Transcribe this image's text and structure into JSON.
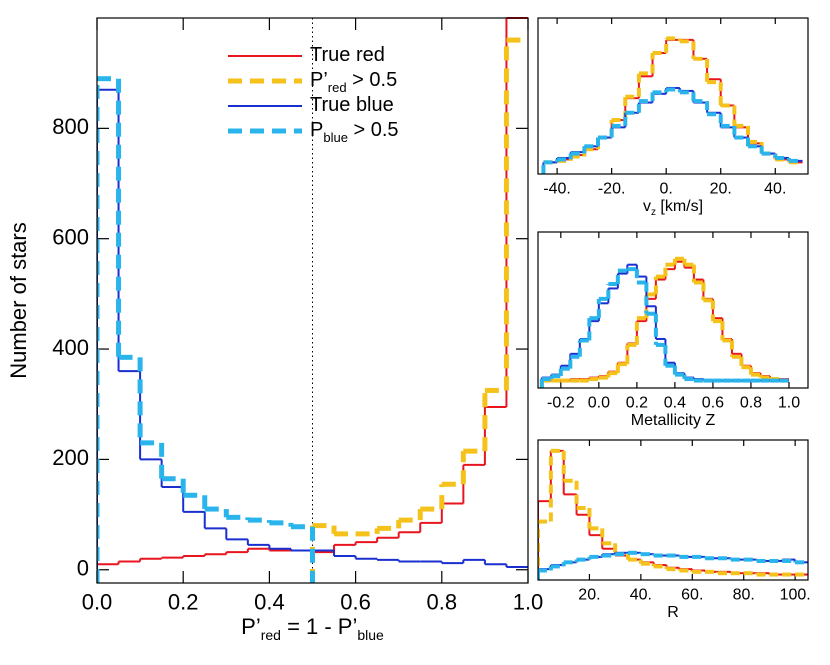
{
  "chart_data": [
    {
      "type": "histogram",
      "ylabel": "Number of stars",
      "xlabel_parts": [
        "P’",
        "red",
        " = 1 - P’",
        "blue"
      ],
      "bins": [
        0,
        0.05,
        0.1,
        0.15,
        0.2,
        0.25,
        0.3,
        0.35,
        0.4,
        0.45,
        0.5,
        0.55,
        0.6,
        0.65,
        0.7,
        0.75,
        0.8,
        0.85,
        0.9,
        0.95,
        1.0
      ],
      "xlim": [
        0,
        1
      ],
      "ylim": [
        -24,
        1000
      ],
      "xticks": [
        {
          "value": 0,
          "label": "0.0"
        },
        0.2,
        0.4,
        0.6,
        0.8,
        {
          "value": 1,
          "label": "1.0"
        }
      ],
      "yticks": [
        0,
        200,
        400,
        600,
        800
      ],
      "vline": 0.5,
      "legend": "top-center",
      "series": [
        {
          "name_parts": [
            "True red"
          ],
          "color": "#e8141e",
          "dashed": false,
          "values": [
            10,
            15,
            20,
            22,
            25,
            28,
            32,
            38,
            35,
            35,
            32,
            45,
            50,
            58,
            68,
            85,
            120,
            190,
            295,
            1000
          ]
        },
        {
          "name_parts": [
            "P’",
            "red",
            " > 0.5"
          ],
          "color": "#f5c21b",
          "dashed": true,
          "values": [
            null,
            null,
            null,
            null,
            null,
            null,
            null,
            null,
            null,
            null,
            80,
            65,
            65,
            75,
            90,
            110,
            155,
            215,
            325,
            960
          ]
        },
        {
          "name_parts": [
            "True blue"
          ],
          "color": "#1a2fcf",
          "dashed": false,
          "values": [
            870,
            360,
            200,
            150,
            105,
            75,
            55,
            45,
            38,
            35,
            35,
            25,
            20,
            18,
            15,
            15,
            12,
            18,
            10,
            5
          ]
        },
        {
          "name_parts": [
            "P",
            "blue",
            " > 0.5"
          ],
          "color": "#29b5ec",
          "dashed": true,
          "values": [
            890,
            385,
            230,
            165,
            135,
            110,
            95,
            90,
            85,
            78,
            null,
            null,
            null,
            null,
            null,
            null,
            null,
            null,
            null,
            null
          ]
        }
      ]
    },
    {
      "type": "histogram",
      "xlabel_parts": [
        "v",
        "z",
        " [km/s]"
      ],
      "bins": [
        -45,
        -40,
        -35,
        -30,
        -25,
        -20,
        -15,
        -10,
        -5,
        0,
        5,
        10,
        15,
        20,
        25,
        30,
        35,
        40,
        45,
        50
      ],
      "xlim": [
        -47,
        52
      ],
      "ylim": [
        -7,
        100
      ],
      "xticks": [
        {
          "value": -40,
          "label": "-40."
        },
        {
          "value": -20,
          "label": "-20."
        },
        {
          "value": 0,
          "label": "0."
        },
        {
          "value": 20,
          "label": "20."
        },
        {
          "value": 40,
          "label": "40."
        }
      ],
      "series": [
        {
          "color": "#e8141e",
          "dashed": false,
          "values": [
            1,
            3,
            6,
            10,
            18,
            30,
            45,
            60,
            76,
            85,
            85,
            72,
            58,
            40,
            25,
            14,
            7,
            3,
            1
          ]
        },
        {
          "color": "#f5c21b",
          "dashed": true,
          "values": [
            1,
            2,
            5,
            10,
            18,
            30,
            46,
            62,
            76,
            86,
            84,
            72,
            56,
            40,
            26,
            15,
            7,
            3,
            1
          ]
        },
        {
          "color": "#1a2fcf",
          "dashed": false,
          "values": [
            1,
            4,
            8,
            12,
            18,
            25,
            35,
            42,
            48,
            52,
            50,
            42,
            35,
            25,
            18,
            12,
            7,
            4,
            2
          ]
        },
        {
          "color": "#29b5ec",
          "dashed": true,
          "values": [
            1,
            3,
            7,
            12,
            18,
            26,
            35,
            43,
            49,
            51,
            49,
            43,
            34,
            26,
            18,
            12,
            7,
            4,
            2
          ]
        }
      ]
    },
    {
      "type": "histogram",
      "xlabel_parts": [
        "Metallicity Z"
      ],
      "bins": [
        -0.3,
        -0.25,
        -0.2,
        -0.15,
        -0.1,
        -0.05,
        0,
        0.05,
        0.1,
        0.15,
        0.2,
        0.25,
        0.3,
        0.35,
        0.4,
        0.45,
        0.5,
        0.55,
        0.6,
        0.65,
        0.7,
        0.75,
        0.8,
        0.85,
        0.9,
        0.95,
        1.0
      ],
      "xlim": [
        -0.32,
        1.1
      ],
      "ylim": [
        -5,
        100
      ],
      "xticks": [
        -0.2,
        {
          "value": 0,
          "label": "0.0"
        },
        0.2,
        0.4,
        0.6,
        0.8,
        {
          "value": 1,
          "label": "1.0"
        }
      ],
      "series": [
        {
          "color": "#e8141e",
          "dashed": false,
          "values": [
            0,
            0,
            0,
            1,
            1,
            2,
            3,
            6,
            12,
            25,
            40,
            55,
            68,
            75,
            80,
            76,
            68,
            55,
            42,
            28,
            18,
            10,
            5,
            3,
            1,
            1
          ]
        },
        {
          "color": "#f5c21b",
          "dashed": true,
          "values": [
            0,
            0,
            0,
            0,
            0,
            1,
            2,
            5,
            11,
            24,
            42,
            58,
            70,
            78,
            82,
            78,
            66,
            54,
            40,
            27,
            16,
            9,
            4,
            2,
            1,
            0
          ]
        },
        {
          "color": "#1a2fcf",
          "dashed": false,
          "values": [
            2,
            4,
            10,
            18,
            28,
            40,
            52,
            62,
            72,
            78,
            70,
            50,
            28,
            12,
            5,
            2,
            1,
            0,
            0,
            0,
            0,
            0,
            0,
            0,
            0,
            0
          ]
        },
        {
          "color": "#29b5ec",
          "dashed": true,
          "values": [
            1,
            3,
            8,
            16,
            27,
            42,
            55,
            65,
            74,
            75,
            66,
            45,
            24,
            10,
            4,
            1,
            0,
            0,
            0,
            0,
            0,
            0,
            0,
            0,
            0,
            0
          ]
        }
      ]
    },
    {
      "type": "histogram",
      "xlabel_parts": [
        "R"
      ],
      "bins": [
        0,
        5,
        10,
        15,
        20,
        25,
        30,
        35,
        40,
        45,
        50,
        55,
        60,
        65,
        70,
        75,
        80,
        85,
        90,
        95,
        100,
        105
      ],
      "xlim": [
        0,
        105
      ],
      "ylim": [
        -3,
        100
      ],
      "xticks": [
        {
          "value": 20,
          "label": "20."
        },
        {
          "value": 40,
          "label": "40."
        },
        {
          "value": 60,
          "label": "60."
        },
        {
          "value": 80,
          "label": "80."
        },
        {
          "value": 100,
          "label": "100."
        }
      ],
      "series": [
        {
          "color": "#e8141e",
          "dashed": false,
          "values": [
            55,
            92,
            60,
            45,
            30,
            20,
            15,
            12,
            10,
            8,
            6,
            5,
            4,
            3,
            3,
            2,
            2,
            2,
            1,
            1,
            1
          ]
        },
        {
          "color": "#f5c21b",
          "dashed": true,
          "values": [
            40,
            92,
            70,
            50,
            35,
            24,
            16,
            12,
            9,
            7,
            5,
            4,
            3,
            3,
            2,
            2,
            2,
            1,
            1,
            1,
            1
          ]
        },
        {
          "color": "#1a2fcf",
          "dashed": false,
          "values": [
            5,
            8,
            10,
            12,
            14,
            16,
            17,
            17,
            16,
            15,
            15,
            14,
            14,
            13,
            13,
            12,
            12,
            11,
            11,
            12,
            10
          ]
        },
        {
          "color": "#29b5ec",
          "dashed": true,
          "values": [
            4,
            7,
            10,
            12,
            14,
            15,
            16,
            17,
            16,
            15,
            15,
            14,
            14,
            13,
            13,
            12,
            12,
            11,
            11,
            11,
            10
          ]
        }
      ]
    }
  ]
}
